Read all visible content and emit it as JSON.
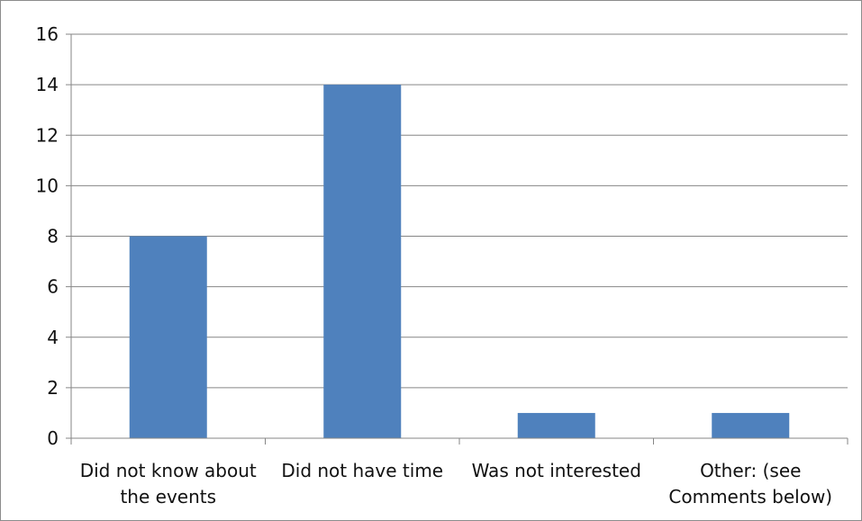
{
  "chart_data": {
    "type": "bar",
    "categories": [
      [
        "Did not know about",
        "the events"
      ],
      [
        "Did not have time"
      ],
      [
        "Was not interested"
      ],
      [
        "Other: (see",
        "Comments below)"
      ]
    ],
    "values": [
      8,
      14,
      1,
      1
    ],
    "ylim": [
      0,
      16
    ],
    "yticks": [
      0,
      2,
      4,
      6,
      8,
      10,
      12,
      14,
      16
    ],
    "grid": true,
    "legend": "none",
    "colors": {
      "bar": "#4f81bd",
      "grid": "#868686",
      "axis": "#868686"
    }
  }
}
